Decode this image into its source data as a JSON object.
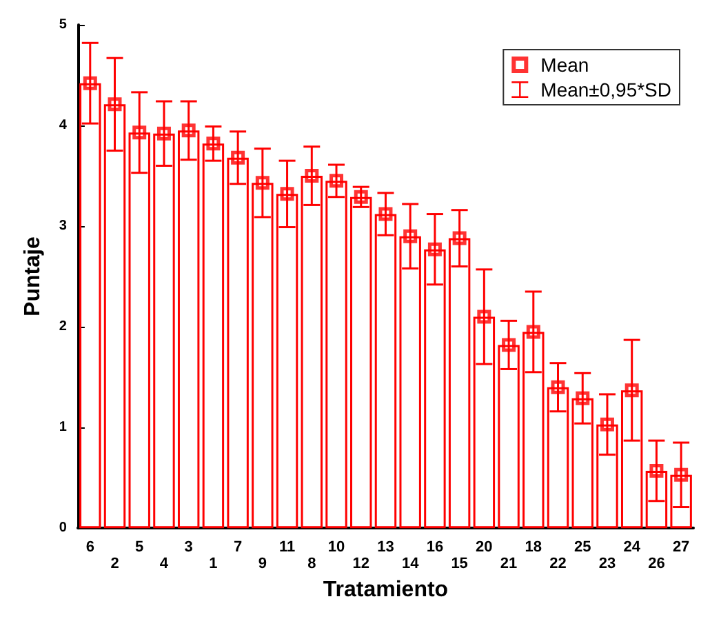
{
  "chart_data": {
    "type": "bar",
    "xlabel": "Tratamiento",
    "ylabel": "Puntaje",
    "categories": [
      "6",
      "2",
      "5",
      "4",
      "3",
      "1",
      "7",
      "9",
      "11",
      "8",
      "10",
      "12",
      "13",
      "14",
      "16",
      "15",
      "20",
      "21",
      "18",
      "22",
      "25",
      "23",
      "24",
      "26",
      "27"
    ],
    "series": [
      {
        "color": "#ff0000",
        "values": [
          4.42,
          4.21,
          3.93,
          3.92,
          3.95,
          3.82,
          3.68,
          3.43,
          3.32,
          3.5,
          3.45,
          3.29,
          3.12,
          2.9,
          2.77,
          2.88,
          2.1,
          1.82,
          1.95,
          1.4,
          1.29,
          1.03,
          1.37,
          0.57,
          0.53
        ]
      },
      {
        "type": "scatter",
        "name": "Mean",
        "color": "#ff0000",
        "x": [
          "6",
          "2",
          "5",
          "4",
          "3",
          "1",
          "7",
          "9",
          "11",
          "8",
          "10",
          "12",
          "13",
          "14",
          "16",
          "15",
          "20",
          "21",
          "18",
          "22",
          "25",
          "23",
          "24",
          "26",
          "27"
        ],
        "values": [
          4.42,
          4.21,
          3.93,
          3.92,
          3.95,
          3.82,
          3.68,
          3.43,
          3.32,
          3.5,
          3.45,
          3.29,
          3.12,
          2.9,
          2.77,
          2.88,
          2.1,
          1.82,
          1.95,
          1.4,
          1.29,
          1.03,
          1.37,
          0.57,
          0.53
        ],
        "errors": [
          0.4,
          0.46,
          0.4,
          0.32,
          0.29,
          0.17,
          0.26,
          0.34,
          0.33,
          0.29,
          0.16,
          0.1,
          0.21,
          0.32,
          0.35,
          0.28,
          0.47,
          0.24,
          0.4,
          0.24,
          0.25,
          0.3,
          0.5,
          0.3,
          0.32
        ]
      }
    ],
    "annotations": [
      "Mean±0,95*SD"
    ],
    "ylim": [
      0,
      5
    ],
    "yticks": [
      0,
      1,
      2,
      3,
      4,
      5
    ],
    "grid": false,
    "legend": "top right",
    "marker": "square"
  }
}
